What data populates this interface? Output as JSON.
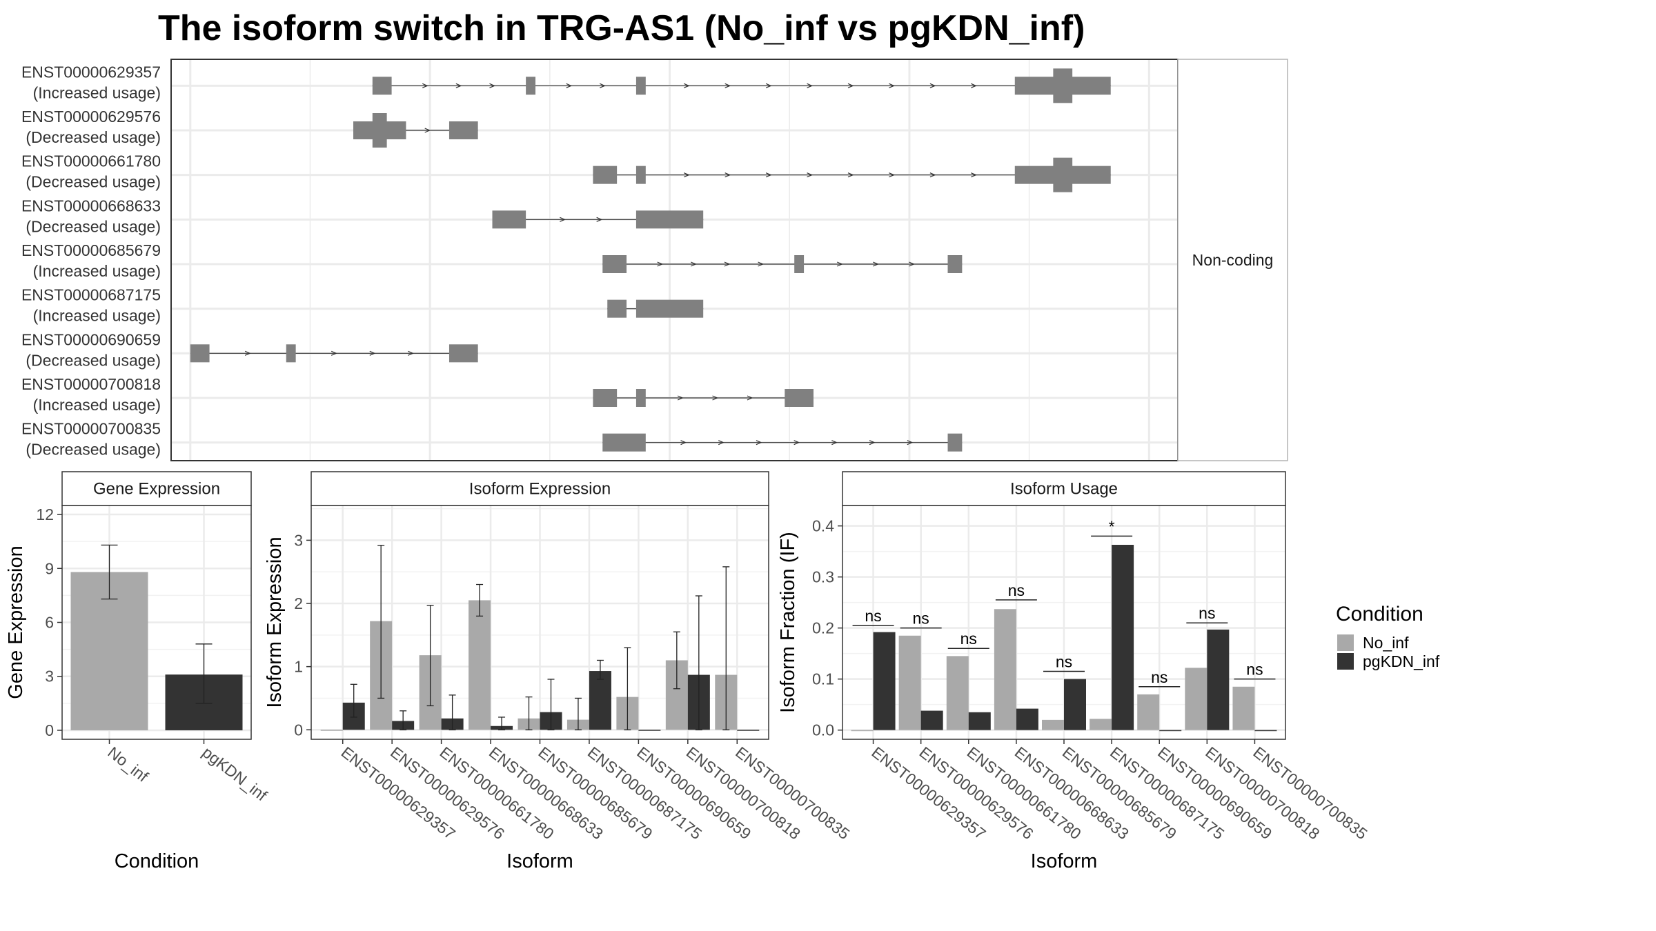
{
  "chart_data": [
    {
      "type": "structure",
      "title": "The isoform switch in TRG-AS1 (No_inf vs pgKDN_inf)",
      "facet_label": "Non-coding",
      "isoforms": [
        {
          "id": "ENST00000629357",
          "usage": "(Increased usage)",
          "exons": [
            [
              -3.1,
              -2.9
            ],
            [
              -1.5,
              -1.4
            ],
            [
              -0.35,
              -0.25
            ],
            [
              3.6,
              4.0,
              "tall"
            ],
            [
              4.0,
              4.2,
              "tall"
            ],
            [
              4.2,
              4.6
            ]
          ],
          "exon_pairs": [
            [
              -3.1,
              -2.9
            ],
            [
              -1.5,
              -1.4
            ],
            [
              -0.35,
              -0.25
            ],
            [
              3.6,
              4.6
            ]
          ],
          "tall": [
            4.0,
            4.2
          ]
        },
        {
          "id": "ENST00000629576",
          "usage": "(Decreased usage)",
          "exon_pairs": [
            [
              -3.3,
              -2.75
            ],
            [
              -2.3,
              -2.0
            ]
          ],
          "tall": [
            -3.1,
            -2.95
          ]
        },
        {
          "id": "ENST00000661780",
          "usage": "(Decreased usage)",
          "exon_pairs": [
            [
              -0.8,
              -0.55
            ],
            [
              -0.35,
              -0.25
            ],
            [
              3.6,
              4.6
            ]
          ],
          "tall": [
            4.0,
            4.2
          ]
        },
        {
          "id": "ENST00000668633",
          "usage": "(Decreased usage)",
          "exon_pairs": [
            [
              -1.85,
              -1.5
            ],
            [
              -0.35,
              0.35
            ]
          ],
          "tall": null
        },
        {
          "id": "ENST00000685679",
          "usage": "(Increased usage)",
          "exon_pairs": [
            [
              -0.7,
              -0.45
            ],
            [
              1.3,
              1.4
            ],
            [
              2.9,
              3.05
            ]
          ],
          "tall": null
        },
        {
          "id": "ENST00000687175",
          "usage": "(Increased usage)",
          "exon_pairs": [
            [
              -0.65,
              -0.45
            ],
            [
              -0.35,
              0.35
            ]
          ],
          "tall": null
        },
        {
          "id": "ENST00000690659",
          "usage": "(Decreased usage)",
          "exon_pairs": [
            [
              -5.0,
              -4.8
            ],
            [
              -4.0,
              -3.9
            ],
            [
              -2.3,
              -2.0
            ]
          ],
          "tall": null
        },
        {
          "id": "ENST00000700818",
          "usage": "(Increased usage)",
          "exon_pairs": [
            [
              -0.8,
              -0.55
            ],
            [
              -0.35,
              -0.25
            ],
            [
              1.2,
              1.5
            ]
          ],
          "tall": null
        },
        {
          "id": "ENST00000700835",
          "usage": "(Decreased usage)",
          "exon_pairs": [
            [
              -0.7,
              -0.25
            ],
            [
              2.9,
              3.05
            ]
          ],
          "tall": null
        }
      ],
      "xlim": [
        -5.2,
        5.3
      ]
    },
    {
      "type": "bar",
      "title": "Gene Expression",
      "xlabel": "Condition",
      "ylabel": "Gene Expression",
      "categories": [
        "No_inf",
        "pgKDN_inf"
      ],
      "values": [
        8.8,
        3.1
      ],
      "errors": [
        [
          7.3,
          10.3
        ],
        [
          1.5,
          4.8
        ]
      ],
      "yticks": [
        "0",
        "3",
        "6",
        "9",
        "12"
      ],
      "ylim": [
        -0.5,
        12.5
      ]
    },
    {
      "type": "bar",
      "title": "Isoform Expression",
      "xlabel": "Isoform",
      "ylabel": "Isoform Expression",
      "categories": [
        "ENST00000629357",
        "ENST00000629576",
        "ENST00000661780",
        "ENST00000668633",
        "ENST00000685679",
        "ENST00000687175",
        "ENST00000690659",
        "ENST00000700818",
        "ENST00000700835"
      ],
      "series": [
        {
          "name": "No_inf",
          "values": [
            0.0,
            1.72,
            1.18,
            2.05,
            0.18,
            0.16,
            0.52,
            1.1,
            0.87
          ],
          "errors": [
            null,
            [
              0.5,
              2.92
            ],
            [
              0.38,
              1.97
            ],
            [
              1.8,
              2.3
            ],
            [
              0.0,
              0.52
            ],
            [
              0.0,
              0.5
            ],
            [
              0.0,
              1.3
            ],
            [
              0.65,
              1.55
            ],
            [
              0.0,
              2.58
            ]
          ]
        },
        {
          "name": "pgKDN_inf",
          "values": [
            0.43,
            0.14,
            0.18,
            0.06,
            0.28,
            0.93,
            0.0,
            0.87,
            0.0
          ],
          "errors": [
            [
              0.2,
              0.72
            ],
            [
              0.0,
              0.3
            ],
            [
              0.0,
              0.55
            ],
            [
              0.0,
              0.2
            ],
            [
              0.0,
              0.8
            ],
            [
              0.8,
              1.1
            ],
            null,
            [
              0.0,
              2.12
            ],
            null
          ]
        }
      ],
      "yticks": [
        "0",
        "1",
        "2",
        "3"
      ],
      "ylim": [
        -0.15,
        3.55
      ]
    },
    {
      "type": "bar",
      "title": "Isoform Usage",
      "xlabel": "Isoform",
      "ylabel": "Isoform Fraction (IF)",
      "categories": [
        "ENST00000629357",
        "ENST00000629576",
        "ENST00000661780",
        "ENST00000668633",
        "ENST00000685679",
        "ENST00000687175",
        "ENST00000690659",
        "ENST00000700818",
        "ENST00000700835"
      ],
      "series": [
        {
          "name": "No_inf",
          "values": [
            0.0,
            0.185,
            0.145,
            0.237,
            0.02,
            0.022,
            0.07,
            0.122,
            0.085
          ]
        },
        {
          "name": "pgKDN_inf",
          "values": [
            0.192,
            0.038,
            0.035,
            0.042,
            0.1,
            0.363,
            0.0,
            0.197,
            0.0
          ]
        }
      ],
      "significance": [
        "ns",
        "ns",
        "ns",
        "ns",
        "ns",
        "*",
        "ns",
        "ns",
        "ns"
      ],
      "sig_height": [
        0.205,
        0.2,
        0.16,
        0.255,
        0.115,
        0.38,
        0.085,
        0.21,
        0.1
      ],
      "yticks": [
        "0.0",
        "0.1",
        "0.2",
        "0.3",
        "0.4"
      ],
      "ylim": [
        -0.018,
        0.44
      ]
    }
  ],
  "legend": {
    "title": "Condition",
    "items": [
      {
        "label": "No_inf",
        "color": "#a9a9a9"
      },
      {
        "label": "pgKDN_inf",
        "color": "#333333"
      }
    ]
  }
}
